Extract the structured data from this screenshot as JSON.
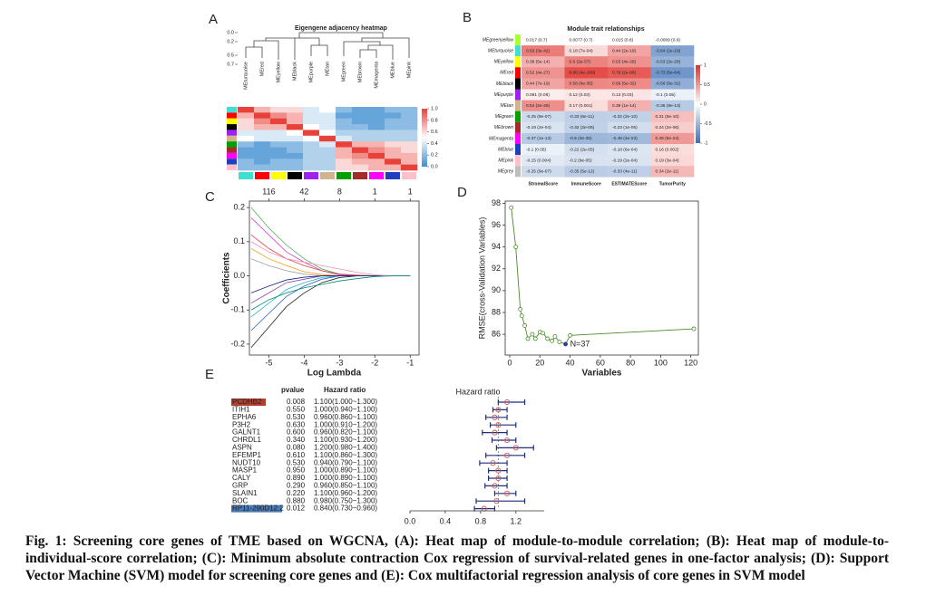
{
  "chart_data": [
    {
      "type": "heatmap",
      "label": "A",
      "title": "Eigengene adjacency heatmap",
      "modules": [
        "MEturquoise",
        "MEred",
        "MEyellow",
        "MEblack",
        "MEpurple",
        "MEtan",
        "MEgreen",
        "MEbrown",
        "MEmagenta",
        "MEblue",
        "MEpink"
      ],
      "module_colors": [
        "#40e0d0",
        "#ff0000",
        "#ffff00",
        "#000000",
        "#a020f0",
        "#d2b48c",
        "#00a000",
        "#a52a2a",
        "#ff00ff",
        "#1f3fbf",
        "#ffc0cb"
      ],
      "matrix": [
        [
          1,
          0.7,
          0.6,
          0.6,
          0.4,
          0.5,
          0.2,
          0.1,
          0.1,
          0.2,
          0.2
        ],
        [
          0.7,
          1,
          0.8,
          0.7,
          0.4,
          0.4,
          0.1,
          0.1,
          0.1,
          0.1,
          0.2
        ],
        [
          0.6,
          0.8,
          1,
          0.7,
          0.4,
          0.4,
          0.2,
          0.1,
          0.1,
          0.2,
          0.2
        ],
        [
          0.6,
          0.7,
          0.7,
          1,
          0.5,
          0.4,
          0.2,
          0.2,
          0.1,
          0.2,
          0.2
        ],
        [
          0.4,
          0.4,
          0.4,
          0.5,
          1,
          0.5,
          0.3,
          0.3,
          0.3,
          0.3,
          0.3
        ],
        [
          0.5,
          0.4,
          0.4,
          0.4,
          0.5,
          1,
          0.4,
          0.3,
          0.3,
          0.3,
          0.3
        ],
        [
          0.2,
          0.1,
          0.2,
          0.2,
          0.3,
          0.4,
          1,
          0.7,
          0.7,
          0.6,
          0.6
        ],
        [
          0.1,
          0.1,
          0.1,
          0.2,
          0.3,
          0.3,
          0.7,
          1,
          0.8,
          0.7,
          0.6
        ],
        [
          0.1,
          0.1,
          0.1,
          0.1,
          0.3,
          0.3,
          0.7,
          0.8,
          1,
          0.7,
          0.7
        ],
        [
          0.2,
          0.1,
          0.2,
          0.2,
          0.3,
          0.3,
          0.6,
          0.7,
          0.7,
          1,
          0.7
        ],
        [
          0.2,
          0.2,
          0.2,
          0.2,
          0.3,
          0.3,
          0.6,
          0.6,
          0.7,
          0.7,
          1
        ]
      ],
      "zlim": [
        0,
        1
      ],
      "colorbar_ticks": [
        {
          "value": 1,
          "label": "1.0"
        },
        {
          "value": 0.8,
          "label": "0.8"
        },
        {
          "value": 0.6,
          "label": "0.6"
        },
        {
          "value": 0.4,
          "label": "0.4"
        },
        {
          "value": 0.2,
          "label": "0.2"
        },
        {
          "value": 0,
          "label": "0.0"
        }
      ],
      "dendrogram_ticks": [
        {
          "value": 0,
          "label": "0.0"
        },
        {
          "value": 0.2,
          "label": "0.2"
        },
        {
          "value": 0.5,
          "label": "0.5"
        },
        {
          "value": 0.7,
          "label": "0.7"
        }
      ]
    },
    {
      "type": "heatmap",
      "label": "B",
      "title": "Module trait relationships",
      "rows": [
        "MEgreenyellow",
        "MEturquoise",
        "MEyellow",
        "MEred",
        "MEblack",
        "MEpurple",
        "MEtan",
        "MEgreen",
        "MEbrown",
        "MEmagenta",
        "MEblue",
        "MEpink",
        "MEgrey"
      ],
      "row_colors": [
        "#adff2f",
        "#40e0d0",
        "#ffff00",
        "#ff0000",
        "#000000",
        "#a020f0",
        "#d2b48c",
        "#00a000",
        "#a52a2a",
        "#ff00ff",
        "#1f3fbf",
        "#ffc0cb",
        "#bebebe"
      ],
      "columns": [
        "StromalScore",
        "ImmuneScore",
        "ESTIMATEScore",
        "TumorPurity"
      ],
      "values": [
        [
          0.017,
          0.0077,
          0.015,
          -0.0089
        ],
        [
          0.63,
          0.18,
          0.44,
          -0.64
        ],
        [
          0.38,
          0.6,
          0.53,
          -0.53
        ],
        [
          0.52,
          0.86,
          0.79,
          -0.73
        ],
        [
          0.44,
          0.58,
          0.56,
          -0.56
        ],
        [
          0.091,
          0.12,
          0.13,
          -0.1
        ],
        [
          0.54,
          0.17,
          0.38,
          -0.36
        ],
        [
          -0.25,
          -0.33,
          -0.32,
          0.31
        ],
        [
          -0.19,
          -0.32,
          -0.23,
          0.24
        ],
        [
          -0.37,
          -0.5,
          -0.48,
          0.49
        ],
        [
          -0.1,
          -0.22,
          -0.18,
          0.16
        ],
        [
          -0.15,
          -0.2,
          -0.19,
          0.19
        ],
        [
          -0.25,
          -0.35,
          -0.33,
          0.34
        ]
      ],
      "value_labels": [
        [
          "0.017 (0.7)",
          "0.0077 (0.7)",
          "0.015 (0.8)",
          "-0.0089 (0.9)"
        ],
        [
          "0.63 (3e-42)",
          "0.18 (7e-04)",
          "0.44 (2e-19)",
          "-0.64 (2e-19)"
        ],
        [
          "0.38 (5e-14)",
          "0.6 (2e-37)",
          "0.53 (4e-29)",
          "-0.53 (2e-28)"
        ],
        [
          "0.52 (4e-27)",
          "0.86 (4e-109)",
          "0.79 (2e-68)",
          "-0.73 (5e-64)"
        ],
        [
          "0.44 (7e-19)",
          "0.58 (6e-35)",
          "0.56 (5e-32)",
          "-0.56 (5e-32)"
        ],
        [
          "0.091 (0.08)",
          "0.12 (0.03)",
          "0.13 (0.03)",
          "-0.1 (0.05)"
        ],
        [
          "0.54 (2e-29)",
          "0.17 (0.001)",
          "0.38 (1e-14)",
          "-0.36 (9e-13)"
        ],
        [
          "-0.25 (9e-07)",
          "-0.33 (6e-11)",
          "-0.32 (2e-10)",
          "0.31 (5e-10)"
        ],
        [
          "-0.19 (2e-04)",
          "-0.32 (2e-05)",
          "-0.23 (1e-05)",
          "0.24 (2e-06)"
        ],
        [
          "-0.37 (1e-13)",
          "-0.5 (3e-25)",
          "-0.48 (4e-23)",
          "0.49 (5e-24)"
        ],
        [
          "-0.1 (0.05)",
          "-0.22 (2e-05)",
          "-0.18 (6e-04)",
          "0.16 (0.002)"
        ],
        [
          "-0.15 (0.004)",
          "-0.2 (9e-05)",
          "-0.19 (2e-04)",
          "0.19 (3e-04)"
        ],
        [
          "-0.25 (9e-07)",
          "-0.35 (5e-12)",
          "-0.33 (4e-11)",
          "0.34 (2e-11)"
        ]
      ],
      "zlim": [
        -1,
        1
      ],
      "colorbar_ticks": [
        1,
        0.5,
        0,
        -0.5,
        -1
      ]
    },
    {
      "type": "line",
      "label": "C",
      "xlabel": "Log Lambda",
      "ylabel": "Coefficients",
      "xlim": [
        -5.55,
        -0.75
      ],
      "ylim": [
        -0.232,
        0.219
      ],
      "xticks": [
        -5,
        -4,
        -3,
        -2,
        -1
      ],
      "yticks": [
        0.2,
        0.1,
        {
          "value": 0,
          "label": "0.0"
        },
        -0.1,
        -0.2
      ],
      "top_labels": [
        116,
        42,
        8,
        1,
        1
      ],
      "x": [
        -5.5,
        -5,
        -4.5,
        -4,
        -3.5,
        -3,
        -2.5,
        -2,
        -1.5,
        -1
      ],
      "series": [
        {
          "color": "#222222",
          "values": [
            -0.21,
            -0.15,
            -0.09,
            -0.05,
            -0.02,
            -0.005,
            0,
            0,
            0,
            0
          ]
        },
        {
          "color": "#4caf50",
          "values": [
            0.2,
            0.14,
            0.09,
            0.05,
            0.02,
            0.005,
            0,
            0,
            0,
            0
          ]
        },
        {
          "color": "#d63fd6",
          "values": [
            0.17,
            0.12,
            0.07,
            0.04,
            0.015,
            0.003,
            0,
            0,
            0,
            0
          ]
        },
        {
          "color": "#2f5fd0",
          "values": [
            -0.16,
            -0.11,
            -0.06,
            -0.03,
            -0.01,
            0,
            0,
            0,
            0,
            0
          ]
        },
        {
          "color": "#e0413a",
          "values": [
            0.12,
            0.08,
            0.05,
            0.03,
            0.015,
            0.005,
            0.002,
            0,
            0,
            0
          ]
        },
        {
          "color": "#29b6c8",
          "values": [
            -0.12,
            -0.08,
            -0.04,
            -0.02,
            -0.005,
            0,
            0,
            0,
            0,
            0
          ]
        },
        {
          "color": "#f39c12",
          "values": [
            0.08,
            0.05,
            0.03,
            0.012,
            0.004,
            0,
            0,
            0,
            0,
            0
          ]
        },
        {
          "color": "#8e44ad",
          "values": [
            -0.08,
            -0.05,
            -0.02,
            -0.01,
            0,
            0,
            0,
            0,
            0,
            0
          ]
        },
        {
          "color": "#9e9e9e",
          "values": [
            0.05,
            0.03,
            0.015,
            0.005,
            0,
            0,
            0,
            0,
            0,
            0
          ]
        },
        {
          "color": "#1a237e",
          "values": [
            -0.05,
            -0.03,
            -0.012,
            -0.004,
            0,
            0,
            0,
            0,
            0,
            0
          ]
        },
        {
          "color": "#f48fb1",
          "values": [
            0.1,
            0.07,
            0.05,
            0.04,
            0.03,
            0.02,
            0.01,
            0.003,
            0,
            0
          ]
        },
        {
          "color": "#00897b",
          "values": [
            -0.1,
            -0.07,
            -0.05,
            -0.035,
            -0.025,
            -0.015,
            -0.008,
            -0.002,
            0,
            0
          ]
        }
      ]
    },
    {
      "type": "line",
      "label": "D",
      "xlabel": "Variables",
      "ylabel": "RMSE(cross-Validation Variables)",
      "xlim": [
        -3,
        125
      ],
      "ylim": [
        84.1,
        98.2
      ],
      "xticks": [
        0,
        20,
        40,
        60,
        80,
        100,
        120
      ],
      "yticks": [
        86,
        88,
        90,
        92,
        94,
        96,
        98
      ],
      "x": [
        1,
        4,
        7,
        8,
        10,
        12,
        15,
        17,
        20,
        22,
        25,
        28,
        30,
        33,
        37,
        40,
        122
      ],
      "values": [
        97.6,
        94,
        88.3,
        87.7,
        86.8,
        85.6,
        86,
        85.6,
        86.2,
        86.1,
        85.6,
        85.4,
        85.8,
        85.3,
        85.1,
        85.9,
        86.5
      ],
      "color": "#4a8a2a",
      "highlight_color": "#2a3f9a",
      "annotation": "N=37"
    },
    {
      "type": "forest",
      "label": "E",
      "headers": [
        "pvalue",
        "Hazard ratio"
      ],
      "title": "Hazard ratio",
      "genes": [
        "PCDHB2",
        "ITIH1",
        "EPHA6",
        "P3H2",
        "GALNT1",
        "CHRDL1",
        "ASPN",
        "EFEMP1",
        "NUDT10",
        "MASP1",
        "CALY",
        "GRP",
        "SLAIN1",
        "BOC",
        "RP11-290D12.2"
      ],
      "label_backgrounds": [
        "#b0402e",
        null,
        null,
        null,
        null,
        null,
        null,
        null,
        null,
        null,
        null,
        null,
        null,
        null,
        "#4a78b0"
      ],
      "pvalues": [
        "0.008",
        "0.550",
        "0.530",
        "0.630",
        "0.600",
        "0.340",
        "0.080",
        "0.610",
        "0.530",
        "0.950",
        "0.890",
        "0.290",
        "0.220",
        "0.880",
        "0.012"
      ],
      "hr_labels": [
        "1.100(1.000~1.300)",
        "1.000(0.940~1.100)",
        "0.960(0.860~1.100)",
        "1.000(0.910~1.200)",
        "0.960(0.820~1.100)",
        "1.100(0.930~1.200)",
        "1.200(0.980~1.400)",
        "1.100(0.860~1.300)",
        "0.940(0.790~1.100)",
        "1.000(0.890~1.100)",
        "1.000(0.890~1.100)",
        "0.960(0.850~1.100)",
        "1.100(0.960~1.200)",
        "0.980(0.750~1.300)",
        "0.840(0.730~0.960)"
      ],
      "hr": [
        1.1,
        1,
        0.96,
        1,
        0.96,
        1.1,
        1.2,
        1.1,
        0.94,
        1,
        1,
        0.96,
        1.1,
        0.98,
        0.84
      ],
      "lo": [
        1,
        0.94,
        0.86,
        0.91,
        0.82,
        0.93,
        0.98,
        0.86,
        0.79,
        0.89,
        0.89,
        0.85,
        0.96,
        0.75,
        0.73
      ],
      "hi": [
        1.3,
        1.1,
        1.1,
        1.2,
        1.1,
        1.2,
        1.4,
        1.3,
        1.1,
        1.1,
        1.1,
        1.1,
        1.2,
        1.3,
        0.96
      ],
      "xlim": [
        0,
        1.5
      ],
      "xticks": [
        {
          "value": 0,
          "label": "0.0"
        },
        0.4,
        0.8,
        1.2
      ],
      "ref_line": 1,
      "ci_color": "#1f2f7a",
      "point_color": "#d9534f",
      "ref_color": "#3c9a3c"
    }
  ],
  "caption": "Fig. 1: Screening core genes of TME based on WGCNA, (A): Heat map of module-to-module correlation; (B): Heat map of module-to-individual-score correlation; (C): Minimum absolute contraction Cox regression of survival-related genes in one-factor analysis; (D): Support Vector Machine (SVM) model for screening core genes and (E): Cox multifactorial regression analysis of core genes in SVM model"
}
